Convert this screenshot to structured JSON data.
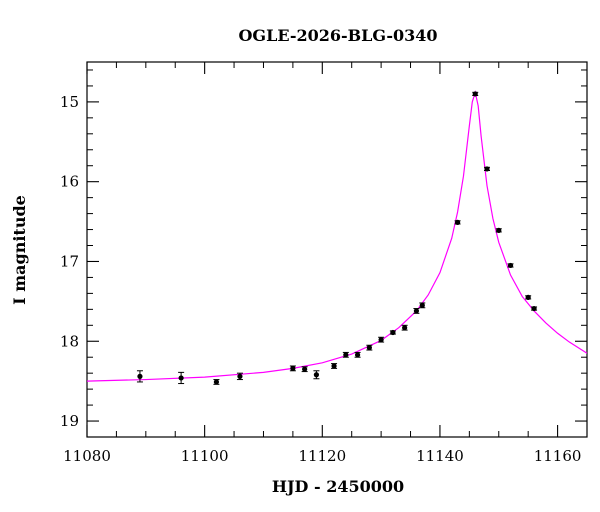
{
  "chart_data": {
    "type": "scatter",
    "title": "OGLE-2026-BLG-0340",
    "xlabel": "HJD - 2450000",
    "ylabel": "I magnitude",
    "xlim": [
      11080,
      11165
    ],
    "ylim": [
      19.2,
      14.5
    ],
    "y_inverted": true,
    "grid": false,
    "x_ticks": [
      11080,
      11100,
      11120,
      11140,
      11160
    ],
    "y_ticks": [
      15,
      16,
      17,
      18,
      19
    ],
    "series": [
      {
        "kind": "points_with_errorbars",
        "color": "#000000",
        "points": [
          {
            "x": 11089.0,
            "y": 18.44,
            "err": 0.07
          },
          {
            "x": 11096.0,
            "y": 18.46,
            "err": 0.07
          },
          {
            "x": 11102.0,
            "y": 18.51,
            "err": 0.03
          },
          {
            "x": 11106.0,
            "y": 18.44,
            "err": 0.04
          },
          {
            "x": 11115.0,
            "y": 18.34,
            "err": 0.03
          },
          {
            "x": 11117.0,
            "y": 18.35,
            "err": 0.03
          },
          {
            "x": 11119.0,
            "y": 18.42,
            "err": 0.05
          },
          {
            "x": 11122.0,
            "y": 18.31,
            "err": 0.03
          },
          {
            "x": 11124.0,
            "y": 18.17,
            "err": 0.03
          },
          {
            "x": 11126.0,
            "y": 18.17,
            "err": 0.03
          },
          {
            "x": 11128.0,
            "y": 18.08,
            "err": 0.03
          },
          {
            "x": 11130.0,
            "y": 17.98,
            "err": 0.03
          },
          {
            "x": 11132.0,
            "y": 17.89,
            "err": 0.02
          },
          {
            "x": 11134.0,
            "y": 17.83,
            "err": 0.03
          },
          {
            "x": 11136.0,
            "y": 17.62,
            "err": 0.03
          },
          {
            "x": 11137.0,
            "y": 17.55,
            "err": 0.03
          },
          {
            "x": 11143.0,
            "y": 16.51,
            "err": 0.02
          },
          {
            "x": 11146.0,
            "y": 14.9,
            "err": 0.02
          },
          {
            "x": 11148.0,
            "y": 15.84,
            "err": 0.02
          },
          {
            "x": 11150.0,
            "y": 16.61,
            "err": 0.02
          },
          {
            "x": 11152.0,
            "y": 17.05,
            "err": 0.02
          },
          {
            "x": 11155.0,
            "y": 17.45,
            "err": 0.02
          },
          {
            "x": 11156.0,
            "y": 17.59,
            "err": 0.02
          }
        ]
      },
      {
        "kind": "model_curve",
        "color": "#ff00ff",
        "x": [
          11080,
          11090,
          11100,
          11110,
          11115,
          11120,
          11125,
          11130,
          11133,
          11136,
          11138,
          11140,
          11142,
          11143,
          11144,
          11145,
          11145.5,
          11146,
          11146.5,
          11147,
          11148,
          11149,
          11150,
          11152,
          11154,
          11156,
          11158,
          11160,
          11162,
          11165
        ],
        "y": [
          18.5,
          18.48,
          18.45,
          18.39,
          18.34,
          18.27,
          18.16,
          17.99,
          17.83,
          17.62,
          17.42,
          17.14,
          16.71,
          16.38,
          15.93,
          15.3,
          15.0,
          14.88,
          15.05,
          15.43,
          16.05,
          16.46,
          16.76,
          17.17,
          17.44,
          17.62,
          17.77,
          17.9,
          18.01,
          18.15
        ]
      }
    ]
  }
}
